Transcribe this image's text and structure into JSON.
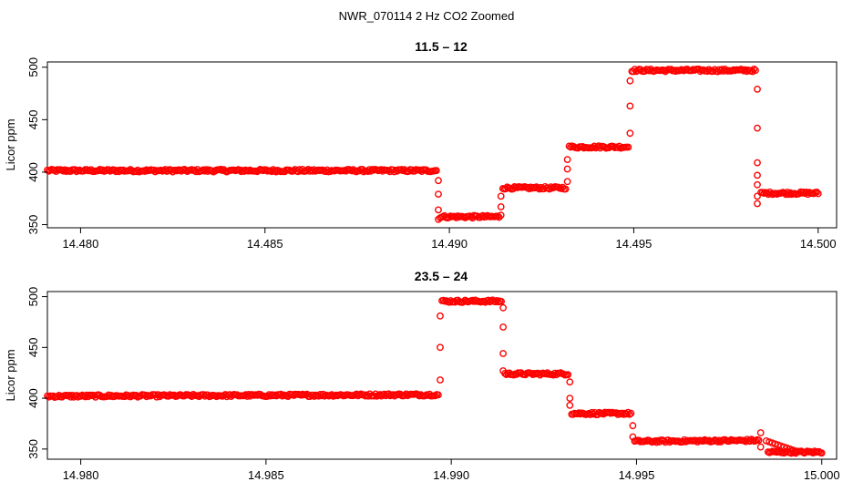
{
  "figure": {
    "suptitle": "NWR_070114  2 Hz CO2 Zoomed"
  },
  "colors": {
    "marker": "#ff0000"
  },
  "chart_data": [
    {
      "type": "scatter",
      "title": "11.5 – 12",
      "xlabel": "",
      "ylabel": "Licor ppm",
      "xlim": [
        14.4791,
        14.5005
      ],
      "ylim": [
        347,
        505
      ],
      "x_ticks": [
        14.48,
        14.485,
        14.49,
        14.495,
        14.5
      ],
      "x_tick_labels": [
        "14.480",
        "14.485",
        "14.490",
        "14.495",
        "14.500"
      ],
      "y_ticks": [
        350,
        400,
        450,
        500
      ],
      "y_tick_labels": [
        "350",
        "400",
        "450",
        "500"
      ],
      "marker": "open-circle",
      "grid": false,
      "segments": [
        {
          "x0": 14.4791,
          "x1": 14.48965,
          "y": 401.5
        },
        {
          "x0": 14.48975,
          "x1": 14.49135,
          "y": 357.5
        },
        {
          "x0": 14.49145,
          "x1": 14.49315,
          "y": 385
        },
        {
          "x0": 14.49325,
          "x1": 14.49485,
          "y": 424
        },
        {
          "x0": 14.49495,
          "x1": 14.4983,
          "y": 497
        },
        {
          "x0": 14.49845,
          "x1": 14.5,
          "y": 380
        }
      ],
      "transitions": [
        {
          "x": 14.4897,
          "y": [
            392,
            379,
            364,
            355
          ]
        },
        {
          "x": 14.4914,
          "y": [
            359,
            367,
            377
          ]
        },
        {
          "x": 14.4932,
          "y": [
            391,
            403,
            412
          ]
        },
        {
          "x": 14.4949,
          "y": [
            437,
            463,
            487
          ]
        },
        {
          "x": 14.49835,
          "y": [
            479,
            442,
            409,
            397,
            388,
            377,
            370
          ]
        }
      ]
    },
    {
      "type": "scatter",
      "title": "23.5 – 24",
      "xlabel": "",
      "ylabel": "Licor ppm",
      "xlim": [
        14.9791,
        15.0004
      ],
      "ylim": [
        340,
        505
      ],
      "x_ticks": [
        14.98,
        14.985,
        14.99,
        14.995,
        15.0
      ],
      "x_tick_labels": [
        "14.980",
        "14.985",
        "14.990",
        "14.995",
        "15.000"
      ],
      "y_ticks": [
        350,
        400,
        450,
        500
      ],
      "y_tick_labels": [
        "350",
        "400",
        "450",
        "500"
      ],
      "marker": "open-circle",
      "grid": false,
      "segments": [
        {
          "x0": 14.9791,
          "x1": 14.98965,
          "y0": 402,
          "y1": 403.5
        },
        {
          "x0": 14.98975,
          "x1": 14.99135,
          "y": 495.5
        },
        {
          "x0": 14.99145,
          "x1": 14.99315,
          "y": 424
        },
        {
          "x0": 14.99325,
          "x1": 14.99485,
          "y": 385
        },
        {
          "x0": 14.99495,
          "x1": 14.9983,
          "y0": 357.5,
          "y1": 358.5
        },
        {
          "x0": 14.99855,
          "x1": 15.0,
          "y": 347
        }
      ],
      "transitions": [
        {
          "x": 14.9897,
          "y": [
            418,
            450,
            481
          ]
        },
        {
          "x": 14.9914,
          "y": [
            489,
            470,
            444,
            427
          ]
        },
        {
          "x": 14.9932,
          "y": [
            416,
            400,
            393
          ]
        },
        {
          "x": 14.9949,
          "y": [
            373,
            362
          ]
        },
        {
          "x": 14.99835,
          "y": [
            366,
            352
          ]
        },
        {
          "x": 14.9985,
          "y0": 358,
          "y1": 348,
          "ramp": true
        }
      ]
    }
  ]
}
